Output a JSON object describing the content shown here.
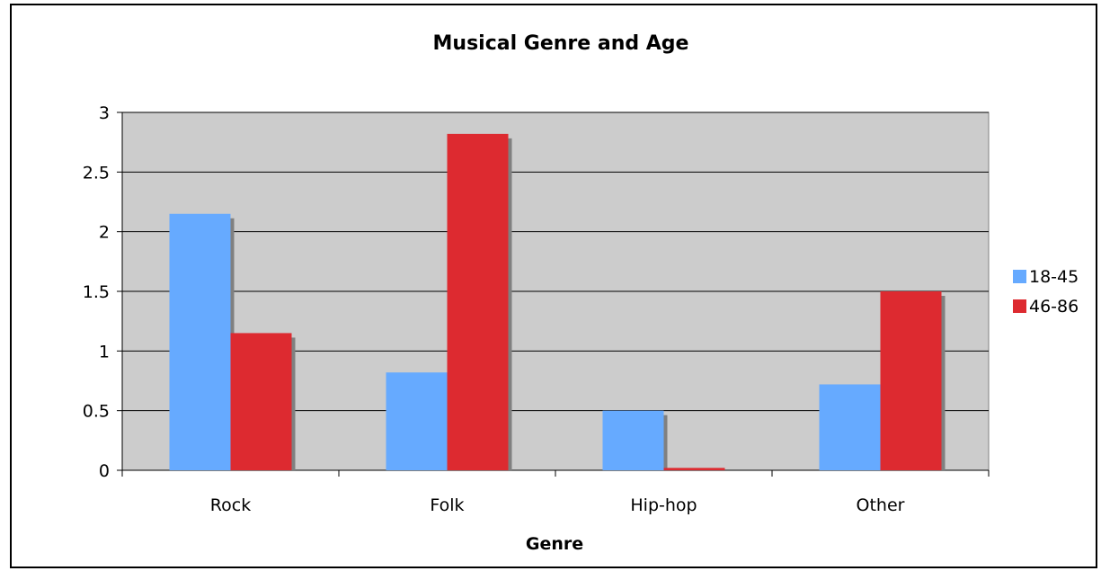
{
  "chart_data": {
    "type": "bar",
    "title": "Musical Genre and Age",
    "xlabel": "Genre",
    "ylabel": "",
    "categories": [
      "Rock",
      "Folk",
      "Hip-hop",
      "Other"
    ],
    "series": [
      {
        "name": "18-45",
        "values": [
          2.15,
          0.82,
          0.5,
          0.72
        ],
        "color": "#66aaff"
      },
      {
        "name": "46-86",
        "values": [
          1.15,
          2.82,
          0.02,
          1.5
        ],
        "color": "#dd2a30"
      }
    ],
    "ylim": [
      0,
      3
    ],
    "yticks": [
      "0",
      "0.5",
      "1",
      "1.5",
      "2",
      "2.5",
      "3"
    ],
    "ytick_values": [
      0,
      0.5,
      1,
      1.5,
      2,
      2.5,
      3
    ],
    "grid": true,
    "legend_position": "right",
    "plot_background": "#cccccc",
    "shadow_color": "#808080"
  }
}
